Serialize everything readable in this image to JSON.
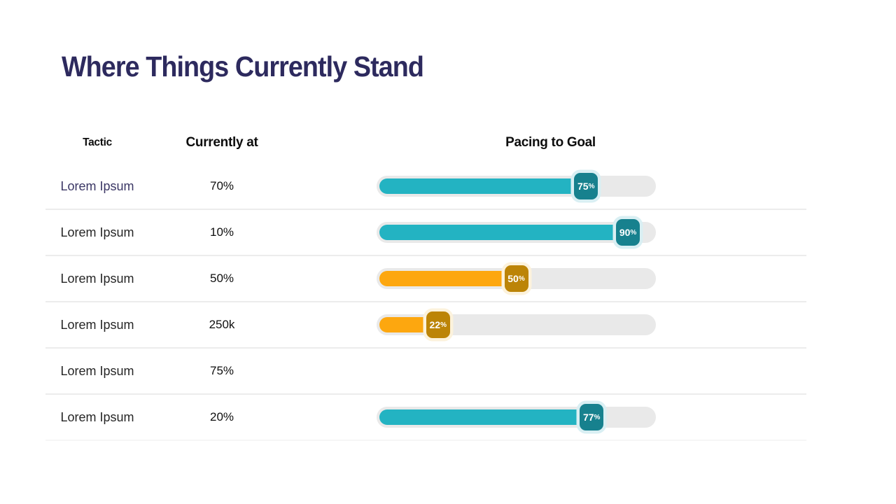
{
  "page": {
    "title": "Where Things Currently Stand"
  },
  "table": {
    "headers": {
      "tactic": "Tactic",
      "currently_at": "Currently at",
      "pacing": "Pacing to Goal"
    },
    "rows": [
      {
        "tactic": "Lorem Ipsum",
        "currently_at": "70%",
        "has_bar": true,
        "pacing_percent": 75,
        "pacing_label": "75",
        "pacing_suffix": "%",
        "theme": "teal",
        "emphasis": true
      },
      {
        "tactic": "Lorem Ipsum",
        "currently_at": "10%",
        "has_bar": true,
        "pacing_percent": 90,
        "pacing_label": "90",
        "pacing_suffix": "%",
        "theme": "teal",
        "emphasis": false
      },
      {
        "tactic": "Lorem Ipsum",
        "currently_at": "50%",
        "has_bar": true,
        "pacing_percent": 50,
        "pacing_label": "50",
        "pacing_suffix": "%",
        "theme": "orange",
        "emphasis": false
      },
      {
        "tactic": "Lorem Ipsum",
        "currently_at": "250k",
        "has_bar": true,
        "pacing_percent": 22,
        "pacing_label": "22",
        "pacing_suffix": "%",
        "theme": "orange",
        "emphasis": false
      },
      {
        "tactic": "Lorem Ipsum",
        "currently_at": "75%",
        "has_bar": false,
        "pacing_percent": null,
        "pacing_label": "",
        "pacing_suffix": "",
        "theme": "none",
        "emphasis": false
      },
      {
        "tactic": "Lorem Ipsum",
        "currently_at": "20%",
        "has_bar": true,
        "pacing_percent": 77,
        "pacing_label": "77",
        "pacing_suffix": "%",
        "theme": "teal",
        "emphasis": false
      }
    ]
  },
  "colors": {
    "title": "#2d2a5e",
    "track": "#e9e9e9",
    "divider": "#ececec",
    "teal_fill": "#23b3c2",
    "teal_badge": "#17818e",
    "teal_halo": "#d9eff3",
    "orange_fill": "#fda70f",
    "orange_badge": "#bc8407",
    "orange_halo": "#fcf2dc",
    "badge_text": "#ffffff"
  },
  "chart_data": {
    "type": "table",
    "title": "Where Things Currently Stand",
    "columns": [
      "Tactic",
      "Currently at",
      "Pacing to Goal"
    ],
    "rows": [
      {
        "tactic": "Lorem Ipsum",
        "currently_at": "70%",
        "pacing_to_goal_percent": 75
      },
      {
        "tactic": "Lorem Ipsum",
        "currently_at": "10%",
        "pacing_to_goal_percent": 90
      },
      {
        "tactic": "Lorem Ipsum",
        "currently_at": "50%",
        "pacing_to_goal_percent": 50
      },
      {
        "tactic": "Lorem Ipsum",
        "currently_at": "250k",
        "pacing_to_goal_percent": 22
      },
      {
        "tactic": "Lorem Ipsum",
        "currently_at": "75%",
        "pacing_to_goal_percent": null
      },
      {
        "tactic": "Lorem Ipsum",
        "currently_at": "20%",
        "pacing_to_goal_percent": 77
      }
    ],
    "bar_range": [
      0,
      100
    ],
    "notes": "Rows 1,2,6 use teal bars; rows 3,4 use orange bars; row 5 has no bar."
  }
}
